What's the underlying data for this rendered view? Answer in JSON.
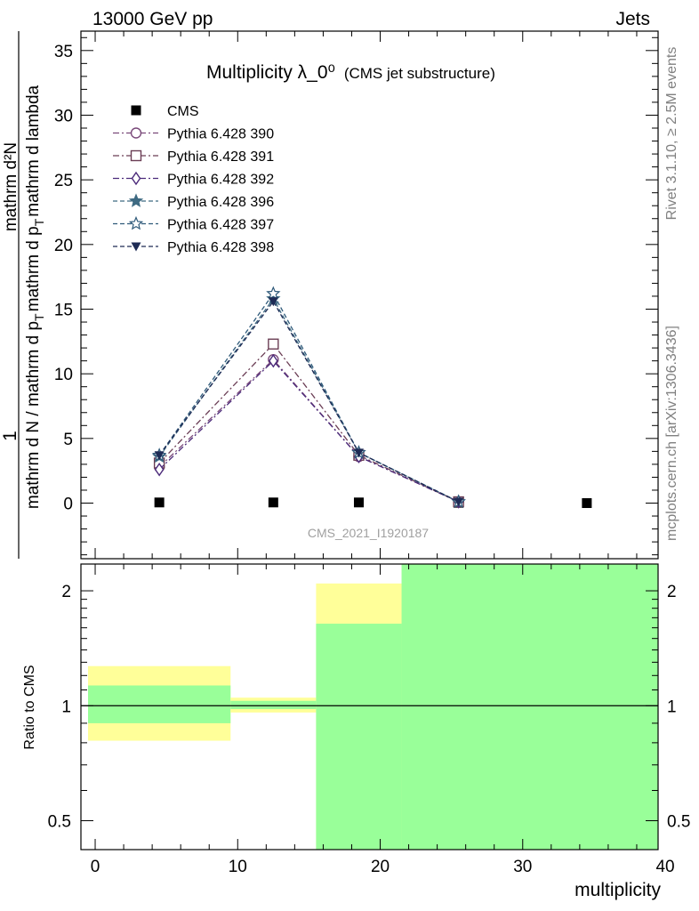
{
  "header": {
    "left": "13000 GeV pp",
    "right": "Jets"
  },
  "side_text": {
    "rivet": "Rivet 3.1.10, ≥ 2.5M events",
    "mcplots": "mcplots.cern.ch [arXiv:1306.3436]"
  },
  "watermark": "CMS_2021_I1920187",
  "chart_data": [
    {
      "type": "line",
      "title": "Multiplicity λ_0⁰",
      "subtitle": "(CMS jet substructure)",
      "ylabel_numerator": "1",
      "ylabel_denominator": "mathrm d N / mathrm d p_T mathrm d p_T mathrm d lambda",
      "ylabel_part1": "mathrm d N / mathrm d p",
      "ylabel_part2": "mathrm d p",
      "ylabel_part3": "mathrm d lambda",
      "ylabel_numerator_full": "mathrm d²N",
      "ylabel_sub": "T",
      "xlim": [
        -1,
        39.5
      ],
      "ylim": [
        -4.3,
        36.5
      ],
      "yticks": [
        0,
        5,
        10,
        15,
        20,
        25,
        30,
        35
      ],
      "grid": false,
      "legend_position": "top-left",
      "x": [
        4.5,
        12.5,
        18.5,
        25.5,
        34.5
      ],
      "series": [
        {
          "name": "CMS",
          "color": "#000000",
          "marker": "square",
          "line": "none",
          "values": [
            0.05,
            0.05,
            0.05,
            0.02,
            0.0
          ]
        },
        {
          "name": "Pythia 6.428 390",
          "color": "#7a4a7a",
          "marker": "circle-open",
          "line": "dashdot",
          "values": [
            2.8,
            11.1,
            3.6,
            0.1,
            null
          ]
        },
        {
          "name": "Pythia 6.428 391",
          "color": "#6b3e55",
          "marker": "square-open",
          "line": "dashdot",
          "values": [
            3.1,
            12.3,
            3.7,
            0.1,
            null
          ]
        },
        {
          "name": "Pythia 6.428 392",
          "color": "#4b2a7a",
          "marker": "diamond-open",
          "line": "dashdot",
          "values": [
            2.6,
            11.0,
            3.6,
            0.1,
            null
          ]
        },
        {
          "name": "Pythia 6.428 396",
          "color": "#3e6a82",
          "marker": "star",
          "line": "dashed",
          "values": [
            3.6,
            15.8,
            3.9,
            0.1,
            null
          ]
        },
        {
          "name": "Pythia 6.428 397",
          "color": "#2f5a7a",
          "marker": "star-open",
          "line": "dashed",
          "values": [
            3.7,
            16.2,
            3.9,
            0.1,
            null
          ]
        },
        {
          "name": "Pythia 6.428 398",
          "color": "#1e2b55",
          "marker": "triangle-down",
          "line": "dashed",
          "values": [
            3.7,
            15.6,
            3.9,
            0.1,
            null
          ]
        }
      ]
    },
    {
      "type": "area",
      "ylabel": "Ratio to CMS",
      "xlabel": "multiplicity",
      "xlim": [
        -1,
        39.5
      ],
      "ylim": [
        0.42,
        2.35
      ],
      "log_y": true,
      "yticks": [
        0.5,
        1,
        2
      ],
      "xticks": [
        0,
        10,
        20,
        30,
        40
      ],
      "reference_line": 1,
      "bands": [
        {
          "x0": -0.5,
          "x1": 9.5,
          "yellow": [
            0.81,
            1.27
          ],
          "green": [
            0.9,
            1.13
          ]
        },
        {
          "x0": 9.5,
          "x1": 15.5,
          "yellow": [
            0.96,
            1.05
          ],
          "green": [
            0.98,
            1.03
          ]
        },
        {
          "x0": 15.5,
          "x1": 21.5,
          "yellow": [
            0.38,
            2.09
          ],
          "green": [
            0.4,
            1.64
          ]
        },
        {
          "x0": 21.5,
          "x1": 39.5,
          "yellow": [
            0.38,
            2.4
          ],
          "green": [
            0.38,
            2.4
          ]
        }
      ],
      "colors": {
        "yellow": "#ffff99",
        "green": "#99ff99"
      }
    }
  ]
}
